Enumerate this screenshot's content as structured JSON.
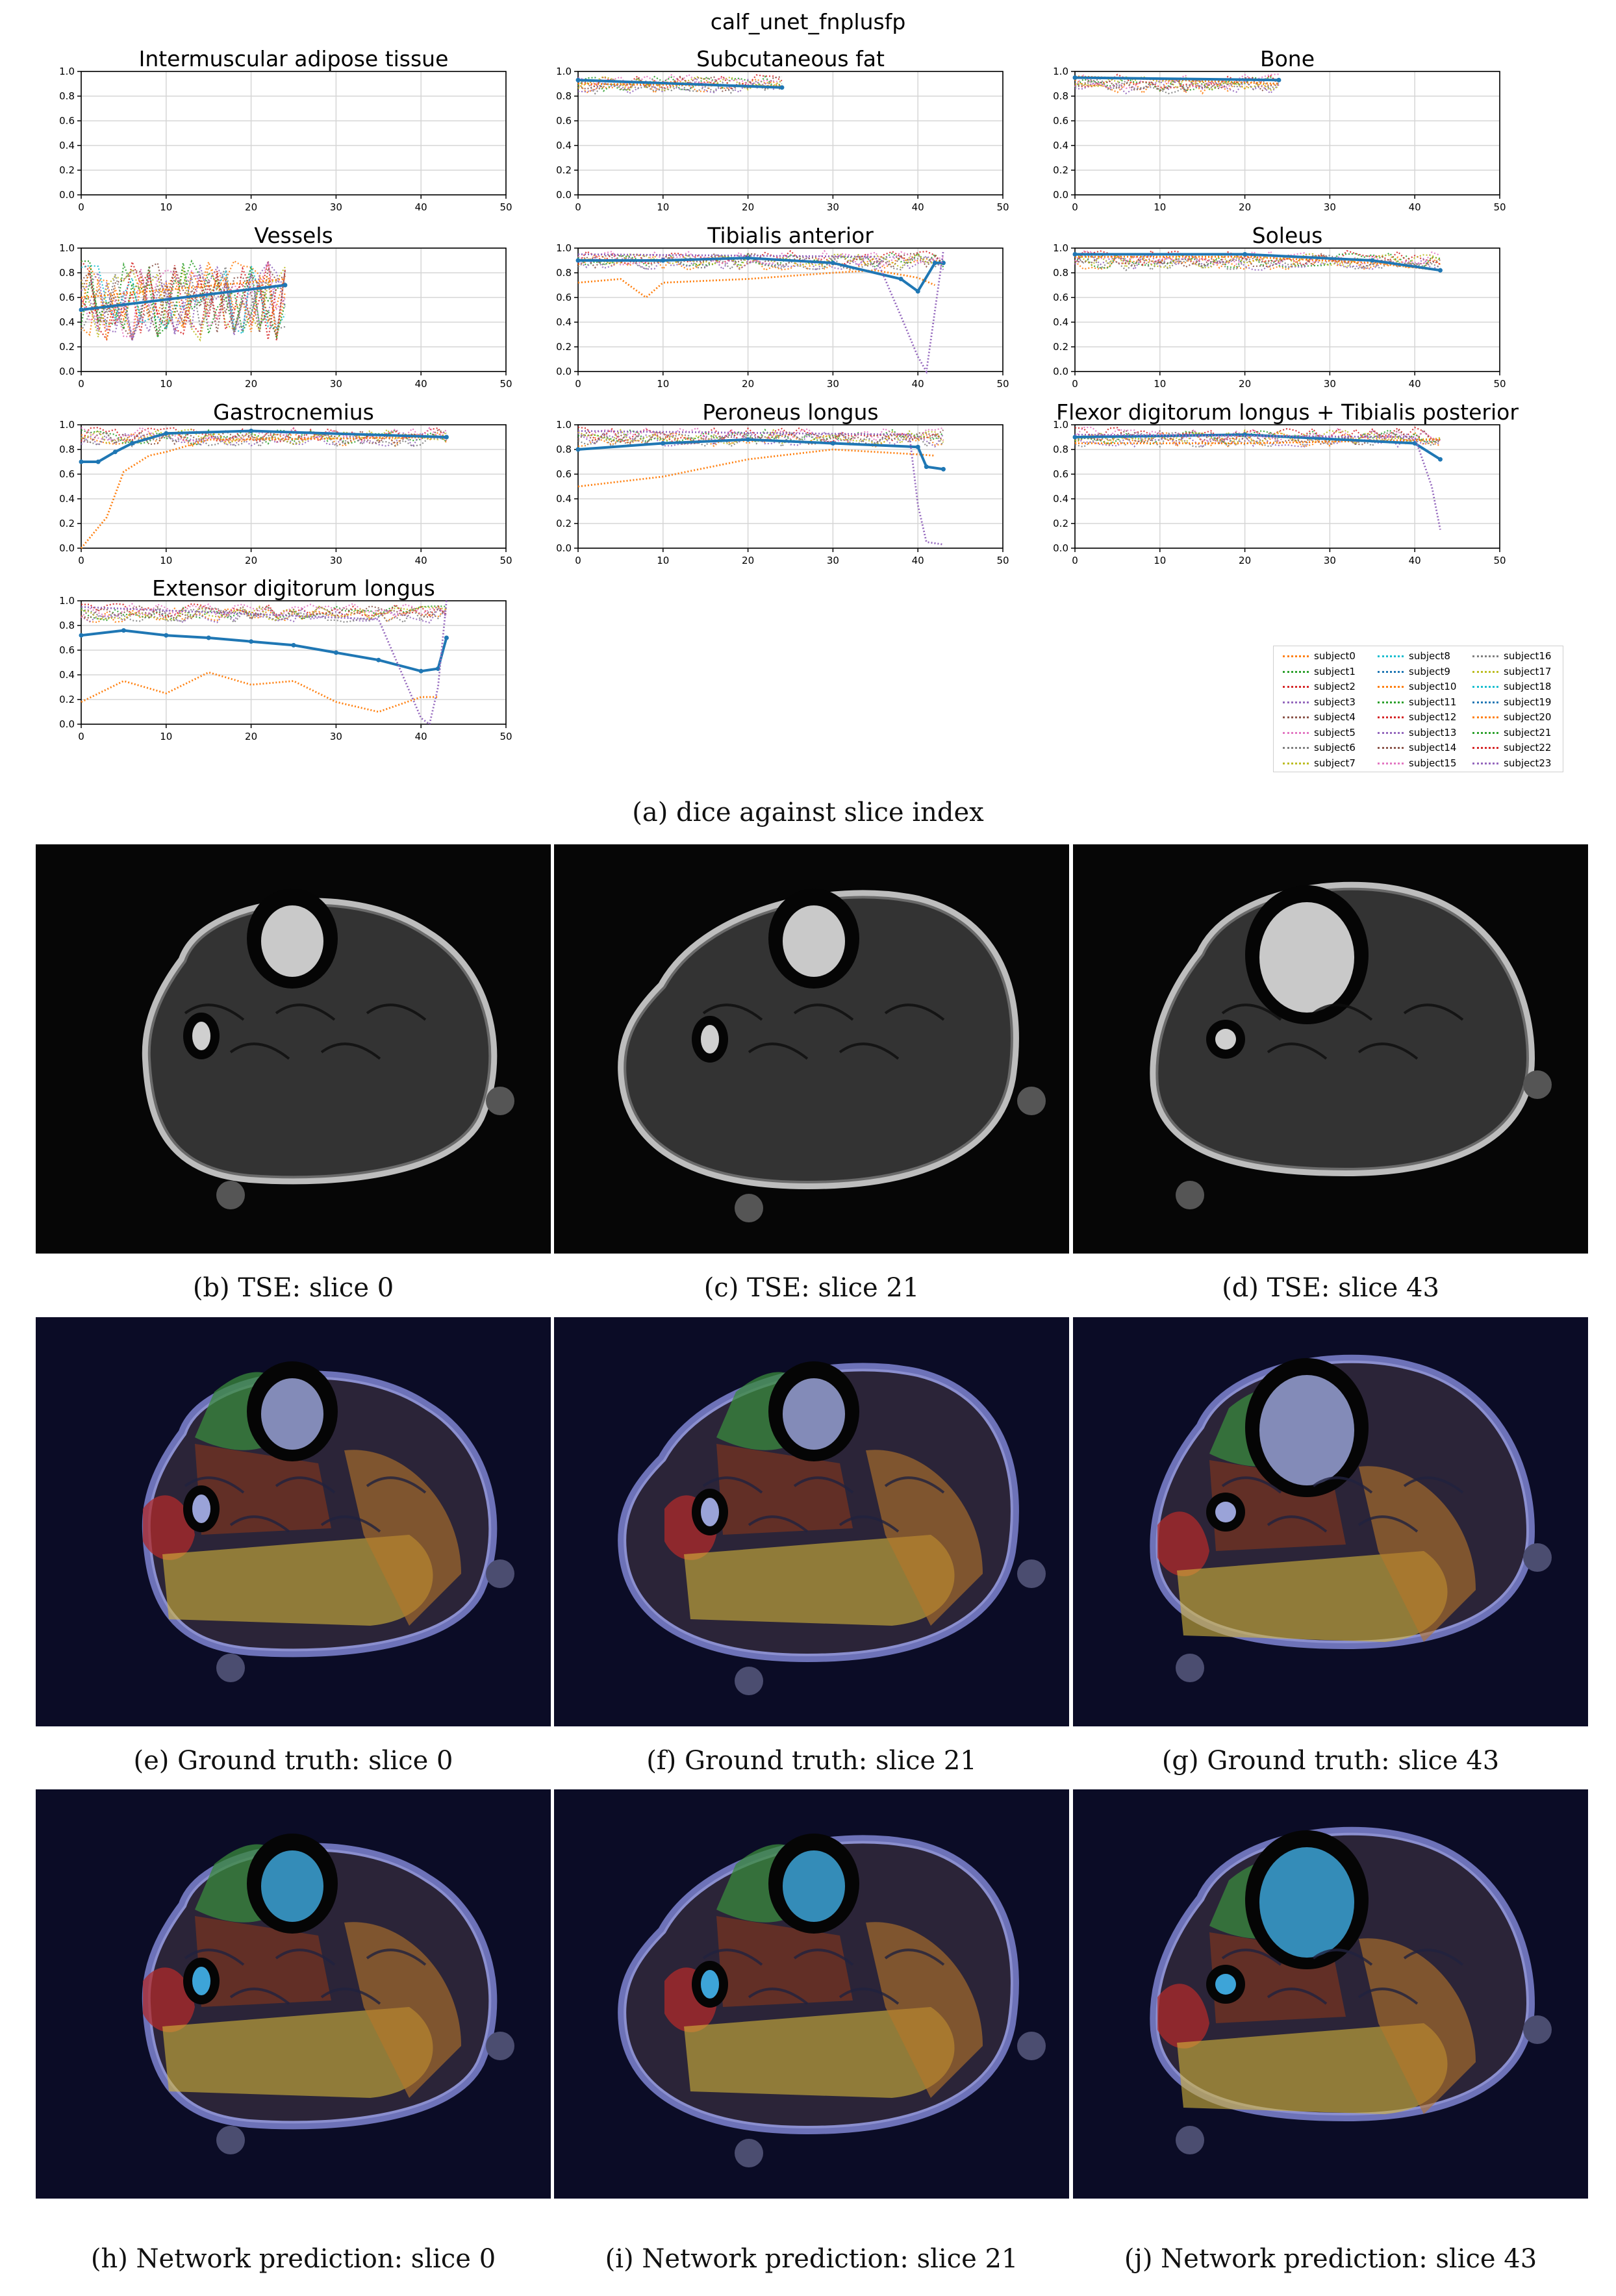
{
  "figure": {
    "suptitle": "calf_unet_fnplusfp",
    "xticks": [
      "0",
      "10",
      "20",
      "30",
      "40",
      "50"
    ],
    "yticks": [
      "0.0",
      "0.2",
      "0.4",
      "0.6",
      "0.8",
      "1.0"
    ]
  },
  "chart_data": [
    {
      "type": "line",
      "title": "Intermuscular adipose tissue",
      "xlim": [
        0,
        50
      ],
      "ylim": [
        0,
        1
      ],
      "grid": true,
      "series": []
    },
    {
      "type": "line",
      "title": "Subcutaneous fat",
      "xlim": [
        0,
        50
      ],
      "ylim": [
        0,
        1
      ],
      "grid": true,
      "series": [
        {
          "name": "subject0",
          "x": [
            0,
            24
          ],
          "y": [
            0.9,
            0.88
          ]
        },
        {
          "name": "subject19",
          "x": [
            0,
            24
          ],
          "y": [
            0.93,
            0.87
          ]
        }
      ]
    },
    {
      "type": "line",
      "title": "Bone",
      "xlim": [
        0,
        50
      ],
      "ylim": [
        0,
        1
      ],
      "grid": true,
      "series": [
        {
          "name": "subject0",
          "x": [
            0,
            24
          ],
          "y": [
            0.96,
            0.9
          ]
        },
        {
          "name": "subject19",
          "x": [
            0,
            24
          ],
          "y": [
            0.95,
            0.93
          ]
        }
      ]
    },
    {
      "type": "line",
      "title": "Vessels",
      "xlim": [
        0,
        50
      ],
      "ylim": [
        0,
        1
      ],
      "grid": true,
      "series": [
        {
          "name": "subject0",
          "x": [
            0,
            24
          ],
          "y": [
            0.6,
            0.75
          ]
        },
        {
          "name": "subject19",
          "x": [
            0,
            24
          ],
          "y": [
            0.5,
            0.7
          ]
        }
      ]
    },
    {
      "type": "line",
      "title": "Tibialis anterior",
      "xlim": [
        0,
        50
      ],
      "ylim": [
        0,
        1
      ],
      "grid": true,
      "series": [
        {
          "name": "subject0",
          "x": [
            0,
            5,
            8,
            10,
            20,
            30,
            35,
            40,
            42
          ],
          "y": [
            0.72,
            0.75,
            0.6,
            0.72,
            0.75,
            0.8,
            0.82,
            0.76,
            0.7
          ]
        },
        {
          "name": "subject19",
          "x": [
            0,
            10,
            20,
            30,
            38,
            40,
            42,
            43
          ],
          "y": [
            0.9,
            0.9,
            0.92,
            0.88,
            0.75,
            0.65,
            0.88,
            0.88
          ]
        },
        {
          "name": "subject15",
          "x": [
            0,
            35,
            38,
            40,
            41,
            43
          ],
          "y": [
            0.95,
            0.93,
            0.45,
            0.12,
            0.0,
            0.98
          ]
        }
      ]
    },
    {
      "type": "line",
      "title": "Soleus",
      "xlim": [
        0,
        50
      ],
      "ylim": [
        0,
        1
      ],
      "grid": true,
      "series": [
        {
          "name": "subject0",
          "x": [
            0,
            20,
            35,
            43
          ],
          "y": [
            0.93,
            0.93,
            0.88,
            0.82
          ]
        },
        {
          "name": "subject19",
          "x": [
            0,
            20,
            35,
            43
          ],
          "y": [
            0.95,
            0.95,
            0.9,
            0.82
          ]
        }
      ]
    },
    {
      "type": "line",
      "title": "Gastrocnemius",
      "xlim": [
        0,
        50
      ],
      "ylim": [
        0,
        1
      ],
      "grid": true,
      "series": [
        {
          "name": "subject0",
          "x": [
            0,
            3,
            5,
            8,
            10,
            15,
            20,
            43
          ],
          "y": [
            0.0,
            0.25,
            0.62,
            0.75,
            0.78,
            0.88,
            0.88,
            0.9
          ]
        },
        {
          "name": "subject19",
          "x": [
            0,
            2,
            4,
            6,
            10,
            20,
            43
          ],
          "y": [
            0.7,
            0.7,
            0.78,
            0.85,
            0.93,
            0.95,
            0.9
          ]
        }
      ]
    },
    {
      "type": "line",
      "title": "Peroneus longus",
      "xlim": [
        0,
        50
      ],
      "ylim": [
        0,
        1
      ],
      "grid": true,
      "series": [
        {
          "name": "subject0",
          "x": [
            0,
            10,
            20,
            30,
            40,
            42
          ],
          "y": [
            0.5,
            0.58,
            0.72,
            0.8,
            0.76,
            0.75
          ]
        },
        {
          "name": "subject19",
          "x": [
            0,
            10,
            20,
            30,
            40,
            41,
            43
          ],
          "y": [
            0.8,
            0.85,
            0.88,
            0.85,
            0.82,
            0.66,
            0.64
          ]
        },
        {
          "name": "subject15",
          "x": [
            0,
            39,
            40,
            41,
            43
          ],
          "y": [
            0.95,
            0.92,
            0.35,
            0.05,
            0.03
          ]
        }
      ]
    },
    {
      "type": "line",
      "title": "Flexor digitorum longus + Tibialis posterior",
      "xlim": [
        0,
        50
      ],
      "ylim": [
        0,
        1
      ],
      "grid": true,
      "series": [
        {
          "name": "subject0",
          "x": [
            0,
            20,
            43
          ],
          "y": [
            0.85,
            0.85,
            0.88
          ]
        },
        {
          "name": "subject19",
          "x": [
            0,
            20,
            40,
            43
          ],
          "y": [
            0.9,
            0.92,
            0.85,
            0.72
          ]
        },
        {
          "name": "subject15",
          "x": [
            0,
            40,
            42,
            43
          ],
          "y": [
            0.92,
            0.9,
            0.5,
            0.15
          ]
        }
      ]
    },
    {
      "type": "line",
      "title": "Extensor digitorum longus",
      "xlim": [
        0,
        50
      ],
      "ylim": [
        0,
        1
      ],
      "grid": true,
      "series": [
        {
          "name": "subject0",
          "x": [
            0,
            5,
            10,
            15,
            20,
            25,
            30,
            35,
            40,
            42
          ],
          "y": [
            0.18,
            0.35,
            0.25,
            0.42,
            0.32,
            0.35,
            0.18,
            0.1,
            0.22,
            0.22
          ]
        },
        {
          "name": "subject19",
          "x": [
            0,
            5,
            10,
            15,
            20,
            25,
            30,
            35,
            40,
            42,
            43
          ],
          "y": [
            0.72,
            0.76,
            0.72,
            0.7,
            0.67,
            0.64,
            0.58,
            0.52,
            0.43,
            0.45,
            0.7
          ]
        },
        {
          "name": "subject15",
          "x": [
            0,
            35,
            40,
            41,
            42,
            43
          ],
          "y": [
            0.95,
            0.85,
            0.05,
            0.0,
            0.3,
            1.0
          ]
        }
      ]
    }
  ],
  "legend": {
    "entries": [
      {
        "name": "subject0",
        "color": "#ff7f0e"
      },
      {
        "name": "subject1",
        "color": "#2ca02c"
      },
      {
        "name": "subject2",
        "color": "#d62728"
      },
      {
        "name": "subject3",
        "color": "#9467bd"
      },
      {
        "name": "subject4",
        "color": "#8c564b"
      },
      {
        "name": "subject5",
        "color": "#e377c2"
      },
      {
        "name": "subject6",
        "color": "#7f7f7f"
      },
      {
        "name": "subject7",
        "color": "#bcbd22"
      },
      {
        "name": "subject8",
        "color": "#17becf"
      },
      {
        "name": "subject9",
        "color": "#1f77b4"
      },
      {
        "name": "subject10",
        "color": "#ff7f0e"
      },
      {
        "name": "subject11",
        "color": "#2ca02c"
      },
      {
        "name": "subject12",
        "color": "#d62728"
      },
      {
        "name": "subject13",
        "color": "#9467bd"
      },
      {
        "name": "subject14",
        "color": "#8c564b"
      },
      {
        "name": "subject15",
        "color": "#e377c2"
      },
      {
        "name": "subject16",
        "color": "#7f7f7f"
      },
      {
        "name": "subject17",
        "color": "#bcbd22"
      },
      {
        "name": "subject18",
        "color": "#17becf"
      },
      {
        "name": "subject19",
        "color": "#1f77b4"
      },
      {
        "name": "subject20",
        "color": "#ff7f0e"
      },
      {
        "name": "subject21",
        "color": "#2ca02c"
      },
      {
        "name": "subject22",
        "color": "#d62728"
      },
      {
        "name": "subject23",
        "color": "#9467bd"
      }
    ]
  },
  "captions": {
    "a": "(a) dice against slice index",
    "b": "(b) TSE: slice 0",
    "c": "(c) TSE: slice 21",
    "d": "(d) TSE: slice 43",
    "e": "(e) Ground truth: slice 0",
    "f": "(f) Ground truth: slice 21",
    "g": "(g) Ground truth: slice 43",
    "h": "(h) Network prediction: slice 0",
    "i": "(i) Network prediction: slice 21",
    "j": "(j) Network prediction: slice 43"
  },
  "colors": {
    "series_main": "#1f77b4",
    "series_orange": "#ff7f0e",
    "series_purple": "#9467bd",
    "series_green": "#2ca02c",
    "series_red": "#d62728",
    "mask_tibialis": "#3a8a3c",
    "mask_bone": "#9aa3d8",
    "mask_gastro": "#d4b53a",
    "mask_soleus": "#7a3520",
    "mask_red": "#b02a2a",
    "mask_skin": "#6d72b8",
    "pred_bone": "#3da4d8"
  }
}
